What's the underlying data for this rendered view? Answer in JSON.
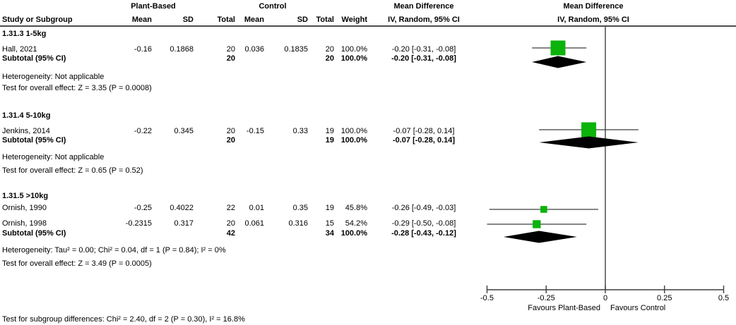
{
  "header": {
    "study_col": "Study or Subgroup",
    "group_plant": "Plant-Based",
    "group_control": "Control",
    "mean": "Mean",
    "sd": "SD",
    "total": "Total",
    "weight": "Weight",
    "md_title": "Mean Difference",
    "md_sub": "IV, Random, 95% CI"
  },
  "subgroups": [
    {
      "label": "1.31.3 1-5kg",
      "studies": [
        {
          "study": "Hall, 2021",
          "mean1": "-0.16",
          "sd1": "0.1868",
          "total1": "20",
          "mean2": "0.036",
          "sd2": "0.1835",
          "total2": "20",
          "weight": "100.0%",
          "ci_text": "-0.20 [-0.31, -0.08]"
        }
      ],
      "subtotal": {
        "label": "Subtotal (95% CI)",
        "total1": "20",
        "total2": "20",
        "weight": "100.0%",
        "ci_text": "-0.20 [-0.31, -0.08]"
      },
      "heterogeneity": "Heterogeneity: Not applicable",
      "overall_effect": "Test for overall effect: Z = 3.35 (P = 0.0008)"
    },
    {
      "label": "1.31.4 5-10kg",
      "studies": [
        {
          "study": "Jenkins, 2014",
          "mean1": "-0.22",
          "sd1": "0.345",
          "total1": "20",
          "mean2": "-0.15",
          "sd2": "0.33",
          "total2": "19",
          "weight": "100.0%",
          "ci_text": "-0.07 [-0.28, 0.14]"
        }
      ],
      "subtotal": {
        "label": "Subtotal (95% CI)",
        "total1": "20",
        "total2": "19",
        "weight": "100.0%",
        "ci_text": "-0.07 [-0.28, 0.14]"
      },
      "heterogeneity": "Heterogeneity: Not applicable",
      "overall_effect": "Test for overall effect: Z = 0.65 (P = 0.52)"
    },
    {
      "label": "1.31.5 >10kg",
      "studies": [
        {
          "study": "Ornish, 1990",
          "mean1": "-0.25",
          "sd1": "0.4022",
          "total1": "22",
          "mean2": "0.01",
          "sd2": "0.35",
          "total2": "19",
          "weight": "45.8%",
          "ci_text": "-0.26 [-0.49, -0.03]"
        },
        {
          "study": "Ornish, 1998",
          "mean1": "-0.2315",
          "sd1": "0.317",
          "total1": "20",
          "mean2": "0.061",
          "sd2": "0.316",
          "total2": "15",
          "weight": "54.2%",
          "ci_text": "-0.29 [-0.50, -0.08]"
        }
      ],
      "subtotal": {
        "label": "Subtotal (95% CI)",
        "total1": "42",
        "total2": "34",
        "weight": "100.0%",
        "ci_text": "-0.28 [-0.43, -0.12]"
      },
      "heterogeneity": "Heterogeneity: Tau² = 0.00; Chi² = 0.04, df = 1 (P = 0.84); I² = 0%",
      "overall_effect": "Test for overall effect: Z = 3.49 (P = 0.0005)"
    }
  ],
  "footer": {
    "subgroup_differences": "Test for subgroup differences: Chi² = 2.40, df = 2 (P = 0.30), I² = 16.8%"
  },
  "chart_data": {
    "type": "forest",
    "title": "Mean Difference, IV, Random, 95% CI",
    "x_axis": {
      "min": -0.5,
      "max": 0.5,
      "ticks": [
        -0.5,
        -0.25,
        0,
        0.25,
        0.5
      ],
      "tick_labels": [
        "-0.5",
        "-0.25",
        "0",
        "0.25",
        "0.5"
      ],
      "favours_left": "Favours Plant-Based",
      "favours_right": "Favours Control"
    },
    "subgroups": [
      {
        "name": "1.31.3 1-5kg",
        "studies": [
          {
            "study": "Hall, 2021",
            "md": -0.2,
            "lo": -0.31,
            "hi": -0.08,
            "weight_pct": 100.0
          }
        ],
        "subtotal": {
          "md": -0.2,
          "lo": -0.31,
          "hi": -0.08
        }
      },
      {
        "name": "1.31.4 5-10kg",
        "studies": [
          {
            "study": "Jenkins, 2014",
            "md": -0.07,
            "lo": -0.28,
            "hi": 0.14,
            "weight_pct": 100.0
          }
        ],
        "subtotal": {
          "md": -0.07,
          "lo": -0.28,
          "hi": 0.14
        }
      },
      {
        "name": "1.31.5 >10kg",
        "studies": [
          {
            "study": "Ornish, 1990",
            "md": -0.26,
            "lo": -0.49,
            "hi": -0.03,
            "weight_pct": 45.8
          },
          {
            "study": "Ornish, 1998",
            "md": -0.29,
            "lo": -0.5,
            "hi": -0.08,
            "weight_pct": 54.2
          }
        ],
        "subtotal": {
          "md": -0.28,
          "lo": -0.43,
          "hi": -0.12
        }
      }
    ]
  },
  "colors": {
    "square": "#0BB30B",
    "diamond": "#000000",
    "ci_line": "#3f3f3f",
    "axis": "#3f3f3f",
    "text": "#000000",
    "header_rule": "#4d4d4d"
  }
}
